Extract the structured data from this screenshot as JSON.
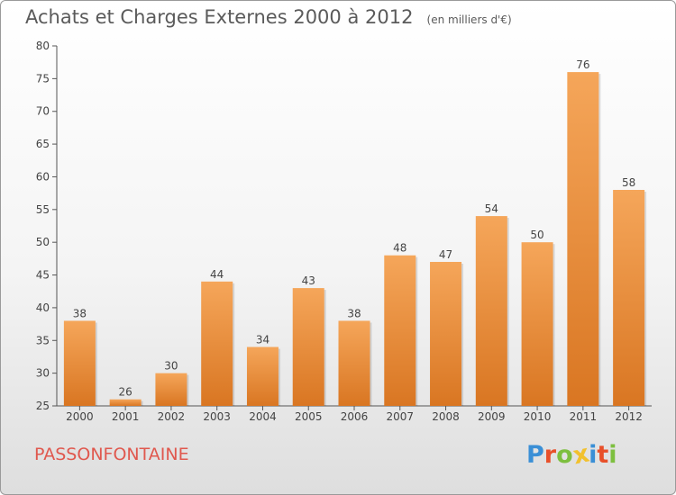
{
  "chart_data": {
    "type": "bar",
    "title": "Achats et Charges Externes 2000 à 2012",
    "subtitle": "(en milliers d'€)",
    "categories": [
      "2000",
      "2001",
      "2002",
      "2003",
      "2004",
      "2005",
      "2006",
      "2007",
      "2008",
      "2009",
      "2010",
      "2011",
      "2012"
    ],
    "values": [
      38,
      26,
      30,
      44,
      34,
      43,
      38,
      48,
      47,
      54,
      50,
      76,
      58
    ],
    "ylim": [
      25,
      80
    ],
    "yticks": [
      25,
      30,
      35,
      40,
      45,
      50,
      55,
      60,
      65,
      70,
      75,
      80
    ],
    "grid": false,
    "xlabel": "",
    "ylabel": "",
    "bar_color_top": "#f5a65a",
    "bar_color_bottom": "#d97622"
  },
  "footer": {
    "commune": "PASSONFONTAINE",
    "logo_letters": [
      "P",
      "r",
      "o",
      "x",
      "i",
      "t",
      "i"
    ],
    "logo_colors": [
      "#3a8fd6",
      "#e8502a",
      "#7dbf3f",
      "#f2c12e",
      "#3a8fd6",
      "#e8502a",
      "#7dbf3f"
    ]
  }
}
